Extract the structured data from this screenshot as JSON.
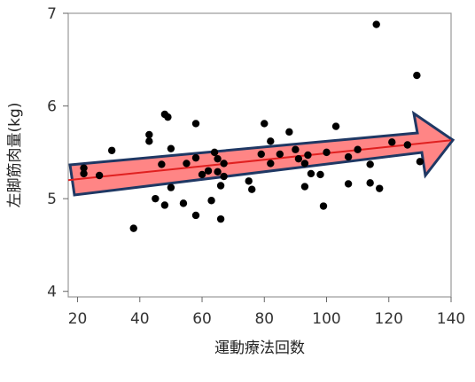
{
  "chart_data": {
    "type": "scatter",
    "xlabel": "運動療法回数",
    "ylabel": "左脚筋肉量(kg)",
    "xlim": [
      17,
      140
    ],
    "ylim": [
      3.94,
      7.0
    ],
    "xticks": [
      20,
      40,
      60,
      80,
      100,
      120,
      140
    ],
    "yticks": [
      4,
      5,
      6,
      7
    ],
    "grid": false,
    "points": [
      {
        "x": 22,
        "y": 5.33
      },
      {
        "x": 22,
        "y": 5.27
      },
      {
        "x": 27,
        "y": 5.25
      },
      {
        "x": 31,
        "y": 5.52
      },
      {
        "x": 38,
        "y": 4.68
      },
      {
        "x": 43,
        "y": 5.69
      },
      {
        "x": 43,
        "y": 5.62
      },
      {
        "x": 45,
        "y": 5.0
      },
      {
        "x": 47,
        "y": 5.37
      },
      {
        "x": 48,
        "y": 5.91
      },
      {
        "x": 49,
        "y": 5.88
      },
      {
        "x": 48,
        "y": 4.93
      },
      {
        "x": 50,
        "y": 5.12
      },
      {
        "x": 50,
        "y": 5.54
      },
      {
        "x": 54,
        "y": 4.95
      },
      {
        "x": 55,
        "y": 5.38
      },
      {
        "x": 58,
        "y": 5.81
      },
      {
        "x": 58,
        "y": 4.82
      },
      {
        "x": 58,
        "y": 5.44
      },
      {
        "x": 60,
        "y": 5.26
      },
      {
        "x": 62,
        "y": 5.3
      },
      {
        "x": 63,
        "y": 4.98
      },
      {
        "x": 64,
        "y": 5.5
      },
      {
        "x": 65,
        "y": 5.43
      },
      {
        "x": 65,
        "y": 5.29
      },
      {
        "x": 66,
        "y": 5.14
      },
      {
        "x": 66,
        "y": 4.78
      },
      {
        "x": 67,
        "y": 5.38
      },
      {
        "x": 67,
        "y": 5.24
      },
      {
        "x": 75,
        "y": 5.19
      },
      {
        "x": 76,
        "y": 5.1
      },
      {
        "x": 79,
        "y": 5.48
      },
      {
        "x": 80,
        "y": 5.81
      },
      {
        "x": 82,
        "y": 5.62
      },
      {
        "x": 82,
        "y": 5.38
      },
      {
        "x": 85,
        "y": 5.48
      },
      {
        "x": 88,
        "y": 5.72
      },
      {
        "x": 90,
        "y": 5.53
      },
      {
        "x": 91,
        "y": 5.43
      },
      {
        "x": 93,
        "y": 5.13
      },
      {
        "x": 93,
        "y": 5.38
      },
      {
        "x": 94,
        "y": 5.47
      },
      {
        "x": 95,
        "y": 5.27
      },
      {
        "x": 98,
        "y": 5.26
      },
      {
        "x": 99,
        "y": 4.92
      },
      {
        "x": 100,
        "y": 5.5
      },
      {
        "x": 103,
        "y": 5.78
      },
      {
        "x": 107,
        "y": 5.45
      },
      {
        "x": 107,
        "y": 5.16
      },
      {
        "x": 110,
        "y": 5.53
      },
      {
        "x": 114,
        "y": 5.37
      },
      {
        "x": 114,
        "y": 5.17
      },
      {
        "x": 116,
        "y": 6.88
      },
      {
        "x": 117,
        "y": 5.11
      },
      {
        "x": 121,
        "y": 5.61
      },
      {
        "x": 126,
        "y": 5.58
      },
      {
        "x": 129,
        "y": 6.33
      },
      {
        "x": 130,
        "y": 5.4
      }
    ],
    "fit_line": {
      "x": [
        17,
        140
      ],
      "y": [
        5.2,
        5.63
      ],
      "color": "#e02020"
    },
    "highlight_arrow": {
      "fill": "#ff6666",
      "stroke": "#1f3864"
    },
    "point_color": "#000000",
    "frame_color": "#999999"
  }
}
